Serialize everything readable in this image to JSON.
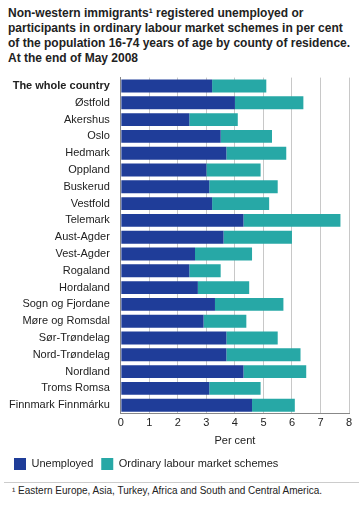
{
  "chart_data": {
    "type": "bar",
    "orientation": "horizontal",
    "stacked": true,
    "title": "Non-western immigrants¹ registered unemployed or participants in ordinary labour market schemes in per cent of the population 16-74 years of age by county of residence. At the end of May 2008",
    "xlabel": "Per cent",
    "annotations": [
      "¹ Eastern Europe, Asia, Turkey, Africa and South and Central America."
    ],
    "categories": [
      "The whole country",
      "Østfold",
      "Akershus",
      "Oslo",
      "Hedmark",
      "Oppland",
      "Buskerud",
      "Vestfold",
      "Telemark",
      "Aust-Agder",
      "Vest-Agder",
      "Rogaland",
      "Hordaland",
      "Sogn og Fjordane",
      "Møre og Romsdal",
      "Sør-Trøndelag",
      "Nord-Trøndelag",
      "Nordland",
      "Troms Romsa",
      "Finnmark Finnmárku"
    ],
    "series": [
      {
        "name": "Unemployed",
        "color": "#1f3d99",
        "values": [
          3.2,
          4.0,
          2.4,
          3.5,
          3.7,
          3.0,
          3.1,
          3.2,
          4.3,
          3.6,
          2.6,
          2.4,
          2.7,
          3.3,
          2.9,
          3.7,
          3.7,
          4.3,
          3.1,
          4.6
        ]
      },
      {
        "name": "Ordinary labour market schemes",
        "color": "#27a8a6",
        "values": [
          1.9,
          2.4,
          1.7,
          1.8,
          2.1,
          1.9,
          2.4,
          2.0,
          3.4,
          2.4,
          2.0,
          1.1,
          1.8,
          2.4,
          1.5,
          1.8,
          2.6,
          2.2,
          1.8,
          1.5
        ]
      }
    ],
    "xlim": [
      0,
      8
    ],
    "xticks": [
      0,
      1,
      2,
      3,
      4,
      5,
      6,
      7,
      8
    ],
    "grid": true,
    "legend": "bottom"
  }
}
